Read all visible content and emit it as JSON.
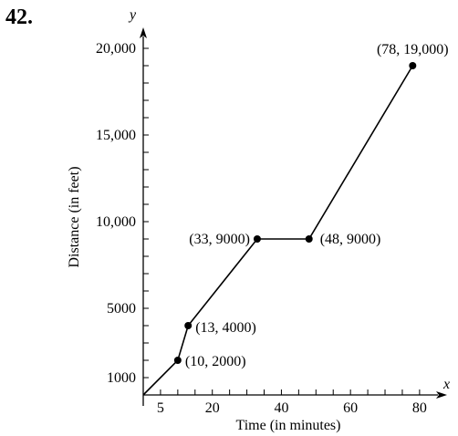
{
  "problem_number": "42.",
  "chart_data": {
    "type": "line",
    "title": "",
    "xlabel": "Time (in minutes)",
    "ylabel": "Distance (in feet)",
    "x_axis_var": "x",
    "y_axis_var": "y",
    "xlim": [
      0,
      85
    ],
    "ylim": [
      0,
      21000
    ],
    "x_ticks": [
      5,
      20,
      40,
      60,
      80
    ],
    "x_tick_labels": [
      "5",
      "20",
      "40",
      "60",
      "80"
    ],
    "x_minor_step": 5,
    "y_ticks": [
      1000,
      5000,
      10000,
      15000,
      20000
    ],
    "y_tick_labels": [
      "1000",
      "5000",
      "10,000",
      "15,000",
      "20,000"
    ],
    "y_minor_step": 1000,
    "series": [
      {
        "points": [
          {
            "x": 0,
            "y": 0,
            "label": ""
          },
          {
            "x": 10,
            "y": 2000,
            "label": "(10, 2000)"
          },
          {
            "x": 13,
            "y": 4000,
            "label": "(13, 4000)"
          },
          {
            "x": 33,
            "y": 9000,
            "label": "(33, 9000)"
          },
          {
            "x": 48,
            "y": 9000,
            "label": "(48, 9000)"
          },
          {
            "x": 78,
            "y": 19000,
            "label": "(78, 19,000)"
          }
        ]
      }
    ],
    "grid": false,
    "line_color": "#000000"
  }
}
